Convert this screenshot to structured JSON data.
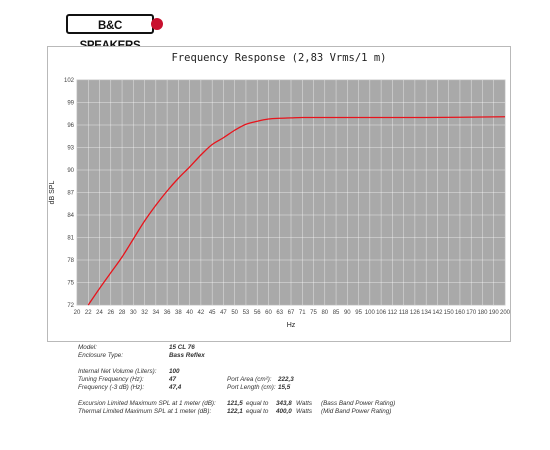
{
  "brand": {
    "logo_text": "B&C SPEAKERS",
    "accent_color": "#c8102e"
  },
  "chart_data": {
    "type": "line",
    "title": "Frequency Response (2,83 Vrms/1 m)",
    "xlabel": "Hz",
    "ylabel": "dB SPL",
    "x_ticks": [
      20,
      22,
      24,
      26,
      28,
      30,
      32,
      34,
      36,
      38,
      40,
      42,
      45,
      47,
      50,
      53,
      56,
      60,
      63,
      67,
      71,
      75,
      80,
      85,
      90,
      95,
      100,
      106,
      112,
      118,
      126,
      134,
      142,
      150,
      160,
      170,
      180,
      190,
      200
    ],
    "y_ticks": [
      72,
      75,
      78,
      81,
      84,
      87,
      90,
      93,
      96,
      99,
      102
    ],
    "ylim": [
      72,
      102
    ],
    "grid": true,
    "background_color": "#a9a9a9",
    "series": [
      {
        "color": "#e8141c",
        "points": [
          [
            22,
            72.0
          ],
          [
            24,
            74.2
          ],
          [
            26,
            76.3
          ],
          [
            28,
            78.4
          ],
          [
            30,
            80.8
          ],
          [
            32,
            83.2
          ],
          [
            34,
            85.3
          ],
          [
            36,
            87.2
          ],
          [
            38,
            88.9
          ],
          [
            40,
            90.4
          ],
          [
            42,
            92.0
          ],
          [
            45,
            93.4
          ],
          [
            47,
            94.3
          ],
          [
            50,
            95.3
          ],
          [
            53,
            96.1
          ],
          [
            56,
            96.5
          ],
          [
            60,
            96.8
          ],
          [
            63,
            96.9
          ],
          [
            67,
            96.95
          ],
          [
            71,
            97.0
          ],
          [
            80,
            97.0
          ],
          [
            100,
            97.0
          ],
          [
            134,
            97.0
          ],
          [
            200,
            97.1
          ]
        ]
      }
    ]
  },
  "specs": {
    "model": {
      "label": "Model:",
      "value": "15 CL 76"
    },
    "enclosure": {
      "label": "Enclosure Type:",
      "value": "Bass Reflex"
    },
    "net_volume": {
      "label": "Internal  Net Volume (Liters):",
      "value": "100"
    },
    "tuning": {
      "label": "Tuning Frequency (Hz):",
      "value": "47"
    },
    "freq3db": {
      "label": "Frequency (-3 dB) (Hz):",
      "value": "47,4"
    },
    "port_area": {
      "label": "Port Area (cm²):",
      "value": "222,3"
    },
    "port_length": {
      "label": "Port Length (cm):",
      "value": "15,5"
    },
    "excursion": {
      "label": "Excursion Limited Maximum SPL at 1 meter (dB):",
      "value": "121,5",
      "equal": "equal to",
      "watts": "343,8",
      "unit": "Watts",
      "note": "(Bass Band Power Rating)"
    },
    "thermal": {
      "label": "Thermal Limited Maximum SPL at 1 meter (dB):",
      "value": "122,1",
      "equal": "equal to",
      "watts": "400,0",
      "unit": "Watts",
      "note": "(Mid Band Power Rating)"
    }
  }
}
